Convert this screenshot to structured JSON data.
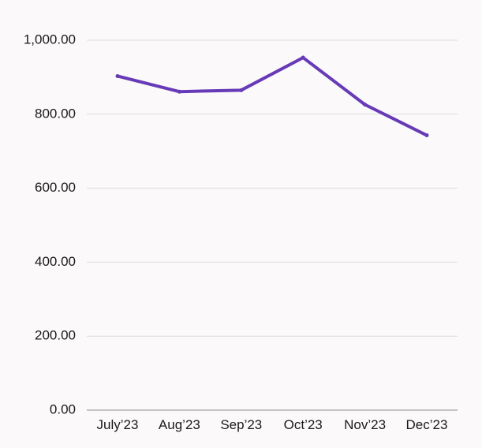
{
  "chart_data": {
    "type": "line",
    "title": "",
    "xlabel": "",
    "ylabel": "",
    "categories": [
      "July’23",
      "Aug’23",
      "Sep’23",
      "Oct’23",
      "Nov’23",
      "Dec’23"
    ],
    "series": [
      {
        "values": [
          903,
          861,
          865,
          953,
          826,
          743
        ],
        "color": "#673ab7"
      }
    ],
    "ylim": [
      0,
      1000
    ],
    "y_ticks": [
      0,
      200,
      400,
      600,
      800,
      1000
    ],
    "y_tick_labels": [
      "0.00",
      "200.00",
      "400.00",
      "600.00",
      "800.00",
      "1,000.00"
    ],
    "grid": true,
    "legend": "none"
  },
  "colors": {
    "background": "#fbf9fa",
    "grid": "#dcdcdc",
    "baseline": "#8c8c8c",
    "text": "#1a1a1a"
  }
}
